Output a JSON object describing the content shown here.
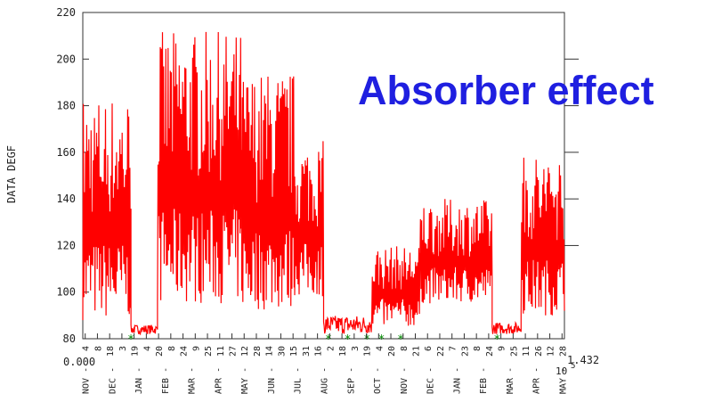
{
  "chart_data": {
    "type": "line",
    "title": "",
    "xlabel": "",
    "ylabel": "DATA DEGF",
    "ylim": [
      80,
      220
    ],
    "y_ticks": [
      80,
      100,
      120,
      140,
      160,
      180,
      200,
      220
    ],
    "x_origin_label": "0.000",
    "x_end_label": "1.432",
    "x_end_exponent": "10",
    "x_end_exponent_power": "5",
    "x_tick_labels": [
      "NOV",
      "DEC",
      "JAN",
      "FEB",
      "MAR",
      "APR",
      "MAY",
      "JUN",
      "JUL",
      "AUG",
      "SEP",
      "OCT",
      "NOV",
      "DEC",
      "JAN",
      "FEB",
      "MAR",
      "APR",
      "MAY"
    ],
    "x_day_labels": [
      "4",
      "8",
      "18",
      "3",
      "19",
      "4",
      "20",
      "8",
      "24",
      "9",
      "25",
      "11",
      "27",
      "12",
      "28",
      "14",
      "30",
      "15",
      "31",
      "16",
      "2",
      "18",
      "3",
      "19",
      "4",
      "20",
      "8",
      "21",
      "6",
      "22",
      "7",
      "23",
      "8",
      "24",
      "9",
      "25",
      "11",
      "26",
      "12",
      "28"
    ],
    "series": [
      {
        "name": "",
        "color": "#ff0000",
        "segments": [
          {
            "x0": 0.0,
            "x1": 0.1,
            "lo": 88,
            "hi": 185
          },
          {
            "x0": 0.1,
            "x1": 0.155,
            "lo": 82,
            "hi": 86
          },
          {
            "x0": 0.155,
            "x1": 0.33,
            "lo": 95,
            "hi": 212
          },
          {
            "x0": 0.33,
            "x1": 0.44,
            "lo": 92,
            "hi": 195
          },
          {
            "x0": 0.44,
            "x1": 0.5,
            "lo": 98,
            "hi": 165
          },
          {
            "x0": 0.5,
            "x1": 0.6,
            "lo": 82,
            "hi": 90
          },
          {
            "x0": 0.6,
            "x1": 0.7,
            "lo": 85,
            "hi": 120
          },
          {
            "x0": 0.7,
            "x1": 0.85,
            "lo": 95,
            "hi": 140
          },
          {
            "x0": 0.85,
            "x1": 0.91,
            "lo": 82,
            "hi": 87
          },
          {
            "x0": 0.91,
            "x1": 1.0,
            "lo": 90,
            "hi": 160
          }
        ]
      }
    ],
    "markers": {
      "symbol": "*",
      "color": "#008800",
      "x": [
        0.1,
        0.51,
        0.55,
        0.59,
        0.62,
        0.66,
        0.86
      ]
    },
    "right_ticks_y": [
      200,
      180,
      160,
      140,
      120
    ],
    "grid": false,
    "legend": "none"
  },
  "overlay": {
    "text": "Absorber effect",
    "color": "#1f1fe0"
  }
}
